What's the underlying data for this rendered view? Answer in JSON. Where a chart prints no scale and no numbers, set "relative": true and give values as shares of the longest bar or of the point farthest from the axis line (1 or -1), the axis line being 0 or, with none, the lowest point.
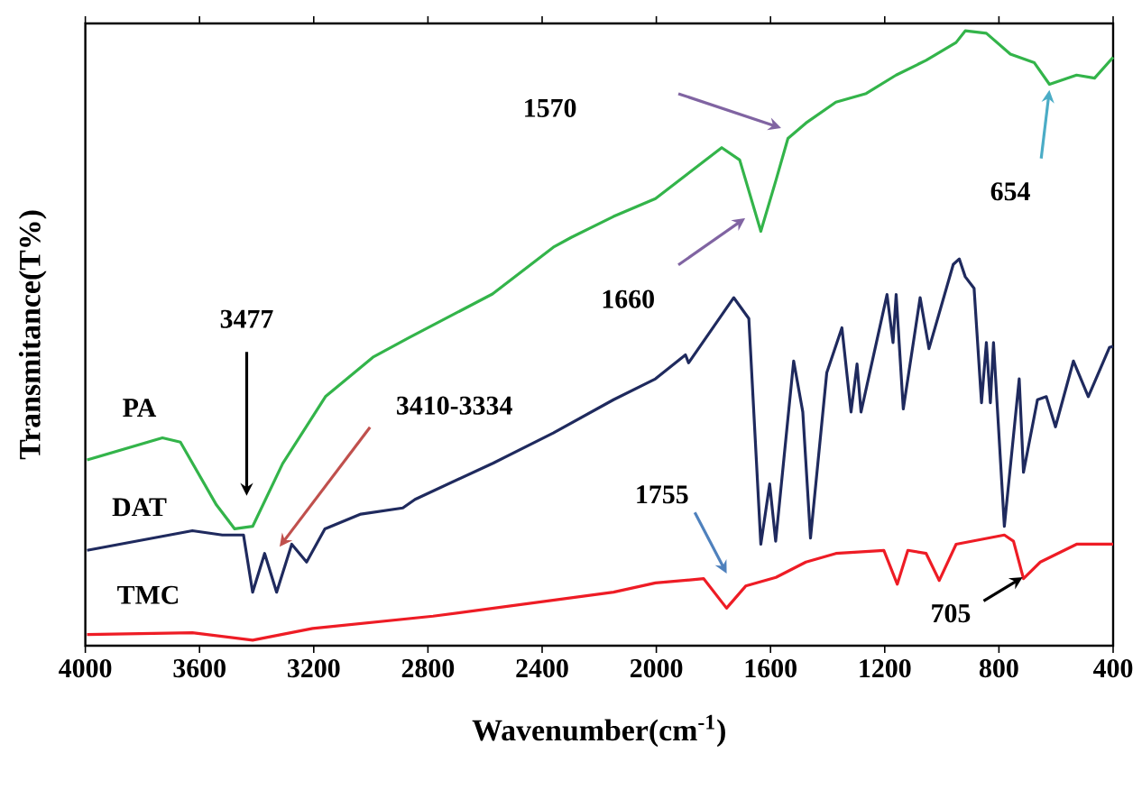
{
  "chart_data": {
    "type": "line",
    "xlabel": "Wavenumber(cm$^{-1}$)",
    "ylabel": "Transmitance(T%)",
    "relative": true,
    "xlim": [
      4000,
      400
    ],
    "xticks": [
      4000,
      3600,
      3200,
      2800,
      2400,
      2000,
      1600,
      1200,
      800,
      400
    ],
    "marker": "none",
    "line_style": "solid",
    "grid": false,
    "series": [
      {
        "name": "PA",
        "color": "#33b44a",
        "x": [
          3994,
          3730,
          3667,
          3541,
          3477,
          3414,
          3309,
          3159,
          2993,
          2866,
          2574,
          2361,
          2298,
          2150,
          2003,
          1771,
          1708,
          1634,
          1581,
          1539,
          1476,
          1371,
          1265,
          1160,
          1055,
          950,
          918,
          844,
          760,
          676,
          623,
          528,
          465,
          400
        ],
        "values": [
          0.302,
          0.338,
          0.331,
          0.229,
          0.19,
          0.194,
          0.296,
          0.405,
          0.469,
          0.501,
          0.572,
          0.648,
          0.664,
          0.698,
          0.727,
          0.81,
          0.79,
          0.674,
          0.757,
          0.825,
          0.85,
          0.884,
          0.898,
          0.928,
          0.952,
          0.981,
          1.0,
          0.996,
          0.962,
          0.948,
          0.913,
          0.928,
          0.923,
          0.957
        ]
      },
      {
        "name": "DAT",
        "color": "#1f2a5e",
        "x": [
          3994,
          3625,
          3520,
          3446,
          3414,
          3372,
          3330,
          3277,
          3225,
          3161,
          3035,
          2888,
          2845,
          2571,
          2361,
          2150,
          2003,
          1898,
          1887,
          1729,
          1676,
          1634,
          1603,
          1582,
          1519,
          1487,
          1460,
          1403,
          1350,
          1318,
          1297,
          1283,
          1192,
          1171,
          1160,
          1135,
          1076,
          1045,
          960,
          939,
          918,
          887,
          861,
          844,
          830,
          819,
          781,
          729,
          714,
          665,
          634,
          602,
          539,
          487,
          413,
          400
        ],
        "values": [
          0.155,
          0.187,
          0.18,
          0.18,
          0.087,
          0.15,
          0.087,
          0.165,
          0.136,
          0.19,
          0.214,
          0.224,
          0.238,
          0.297,
          0.346,
          0.4,
          0.434,
          0.473,
          0.46,
          0.566,
          0.532,
          0.165,
          0.263,
          0.17,
          0.463,
          0.38,
          0.175,
          0.444,
          0.517,
          0.38,
          0.458,
          0.38,
          0.571,
          0.493,
          0.571,
          0.385,
          0.566,
          0.483,
          0.62,
          0.629,
          0.6,
          0.581,
          0.395,
          0.493,
          0.395,
          0.493,
          0.194,
          0.434,
          0.282,
          0.4,
          0.405,
          0.356,
          0.463,
          0.405,
          0.485,
          0.487
        ]
      },
      {
        "name": "TMC",
        "color": "#ee1c25",
        "x": [
          3994,
          3625,
          3414,
          3204,
          2782,
          2150,
          2003,
          1834,
          1754,
          1687,
          1581,
          1476,
          1371,
          1203,
          1156,
          1119,
          1055,
          1009,
          950,
          781,
          749,
          714,
          655,
          528,
          400
        ],
        "values": [
          0.018,
          0.021,
          0.009,
          0.028,
          0.048,
          0.087,
          0.102,
          0.109,
          0.061,
          0.097,
          0.111,
          0.136,
          0.15,
          0.155,
          0.1,
          0.155,
          0.15,
          0.106,
          0.165,
          0.18,
          0.17,
          0.109,
          0.136,
          0.165,
          0.165
        ]
      }
    ],
    "annotations": [
      "3477",
      "3410-3334",
      "1660",
      "1570",
      "654",
      "1755",
      "705"
    ]
  }
}
